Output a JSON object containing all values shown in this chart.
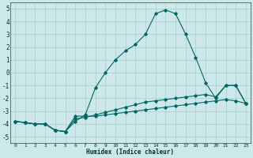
{
  "xlabel": "Humidex (Indice chaleur)",
  "background_color": "#cce8e8",
  "grid_color": "#aacccc",
  "line_color": "#006666",
  "xlim": [
    -0.5,
    23.5
  ],
  "ylim": [
    -5.5,
    5.5
  ],
  "xticks": [
    0,
    1,
    2,
    3,
    4,
    5,
    6,
    7,
    8,
    9,
    10,
    11,
    12,
    13,
    14,
    15,
    16,
    17,
    18,
    19,
    20,
    21,
    22,
    23
  ],
  "yticks": [
    -5,
    -4,
    -3,
    -2,
    -1,
    0,
    1,
    2,
    3,
    4,
    5
  ],
  "series": [
    {
      "x": [
        0,
        1,
        2,
        3,
        4,
        5,
        6,
        7,
        8,
        9,
        10,
        11,
        12,
        13,
        14,
        15,
        16,
        17,
        18,
        19,
        20,
        21,
        22,
        23
      ],
      "y": [
        -3.8,
        -3.9,
        -4.0,
        -4.0,
        -4.5,
        -4.6,
        -3.4,
        -3.4,
        -3.4,
        -3.3,
        -3.2,
        -3.1,
        -3.0,
        -2.9,
        -2.8,
        -2.7,
        -2.6,
        -2.5,
        -2.4,
        -2.3,
        -2.2,
        -2.1,
        -2.2,
        -2.4
      ]
    },
    {
      "x": [
        0,
        1,
        2,
        3,
        4,
        5,
        6,
        7,
        8,
        9,
        10,
        11,
        12,
        13,
        14,
        15,
        16,
        17,
        18,
        19,
        20,
        21,
        22,
        23
      ],
      "y": [
        -3.8,
        -3.9,
        -4.0,
        -4.0,
        -4.5,
        -4.6,
        -3.6,
        -3.5,
        -3.3,
        -3.1,
        -2.9,
        -2.7,
        -2.5,
        -2.3,
        -2.2,
        -2.1,
        -2.0,
        -1.9,
        -1.8,
        -1.7,
        -1.9,
        -1.0,
        -1.0,
        -2.4
      ]
    },
    {
      "x": [
        0,
        1,
        2,
        3,
        4,
        5,
        6,
        7,
        8,
        9,
        10,
        11,
        12,
        13,
        14,
        15,
        16,
        17,
        18,
        19,
        20,
        21,
        22,
        23
      ],
      "y": [
        -3.8,
        -3.9,
        -4.0,
        -4.0,
        -4.5,
        -4.6,
        -3.8,
        -3.3,
        -1.2,
        0.0,
        1.0,
        1.7,
        2.2,
        3.0,
        4.6,
        4.9,
        4.6,
        3.0,
        1.2,
        -0.8,
        -2.0,
        -1.0,
        -1.0,
        -2.4
      ]
    }
  ]
}
